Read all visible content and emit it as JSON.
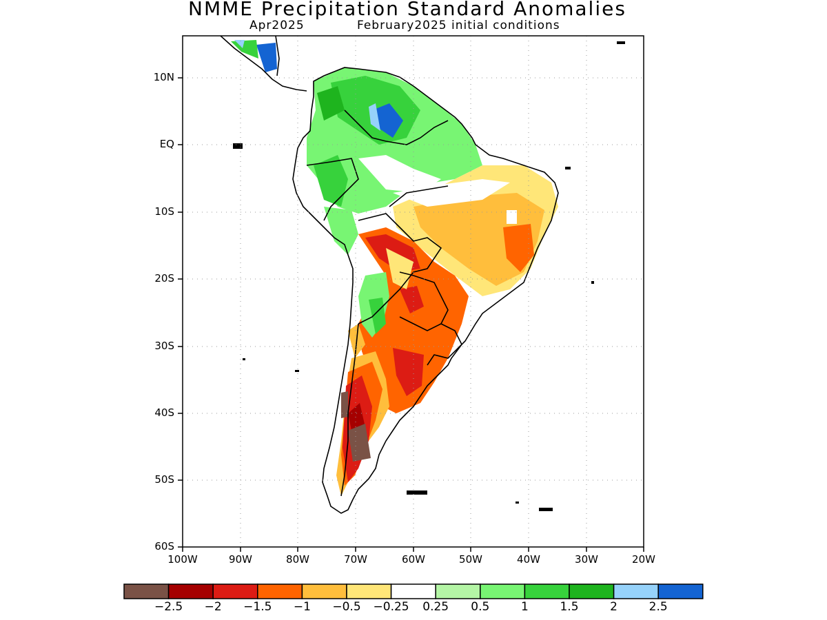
{
  "title": "NMME Precipitation Standard Anomalies",
  "subtitle_left": "Apr2025",
  "subtitle_right": "February2025 initial conditions",
  "y_ticks": [
    "10N",
    "EQ",
    "10S",
    "20S",
    "30S",
    "40S",
    "50S",
    "60S"
  ],
  "x_ticks": [
    "100W",
    "90W",
    "80W",
    "70W",
    "60W",
    "50W",
    "40W",
    "30W",
    "20W"
  ],
  "colorbar": {
    "colors": [
      "#7a5246",
      "#a50000",
      "#dc1c14",
      "#ff6400",
      "#ffbe3c",
      "#ffe678",
      "#ffffff",
      "#b4f5a5",
      "#78f573",
      "#37d23c",
      "#1eb41e",
      "#96d2fa",
      "#1464d2"
    ],
    "labels": [
      "−2.5",
      "−2",
      "−1.5",
      "−1",
      "−0.5",
      "−0.25",
      "0.25",
      "0.5",
      "1",
      "1.5",
      "2",
      "2.5"
    ]
  }
}
